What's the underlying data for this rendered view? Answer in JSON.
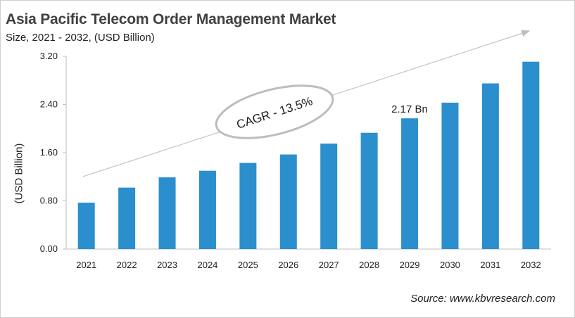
{
  "chart_data": {
    "type": "bar",
    "title": "Asia Pacific Telecom Order Management Market",
    "subtitle": "Size, 2021 - 2032, (USD Billion)",
    "xlabel": "",
    "ylabel": "(USD Billion)",
    "categories": [
      "2021",
      "2022",
      "2023",
      "2024",
      "2025",
      "2026",
      "2027",
      "2028",
      "2029",
      "2030",
      "2031",
      "2032"
    ],
    "values": [
      0.77,
      1.02,
      1.19,
      1.3,
      1.43,
      1.57,
      1.75,
      1.93,
      2.17,
      2.43,
      2.75,
      3.11
    ],
    "ylim": [
      0,
      3.2
    ],
    "yticks": [
      "0.00",
      "0.80",
      "1.60",
      "2.40",
      "3.20"
    ],
    "grid": false,
    "bar_color": "#2b8fce",
    "annotations": {
      "data_label": {
        "category": "2029",
        "text": "2.17 Bn"
      },
      "cagr": "CAGR - 13.5%"
    },
    "source": "Source: www.kbvresearch.com"
  }
}
